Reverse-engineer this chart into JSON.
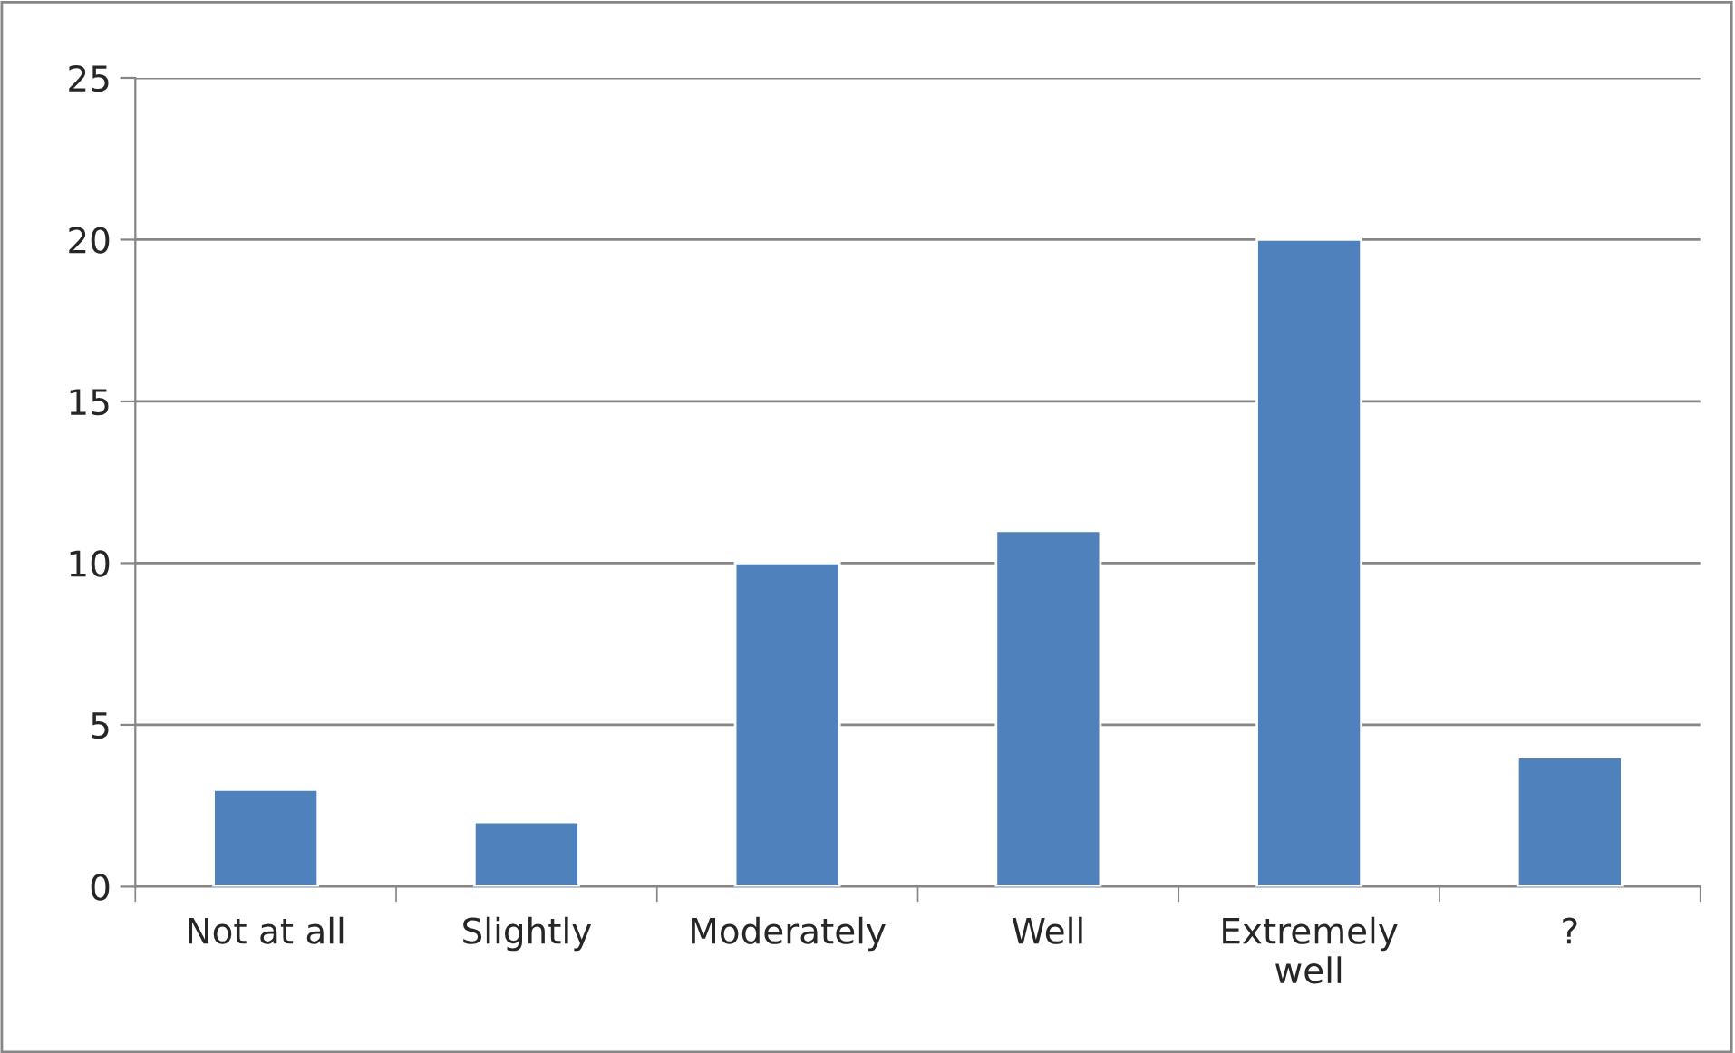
{
  "chart_data": {
    "type": "bar",
    "categories": [
      "Not at all",
      "Slightly",
      "Moderately",
      "Well",
      "Extremely well",
      "?"
    ],
    "values": [
      3,
      2,
      10,
      11,
      20,
      4
    ],
    "color": "#4f81bd",
    "ylim": [
      0,
      25
    ],
    "yticks": [
      0,
      5,
      10,
      15,
      20,
      25
    ],
    "grid": "y",
    "legend": false
  }
}
